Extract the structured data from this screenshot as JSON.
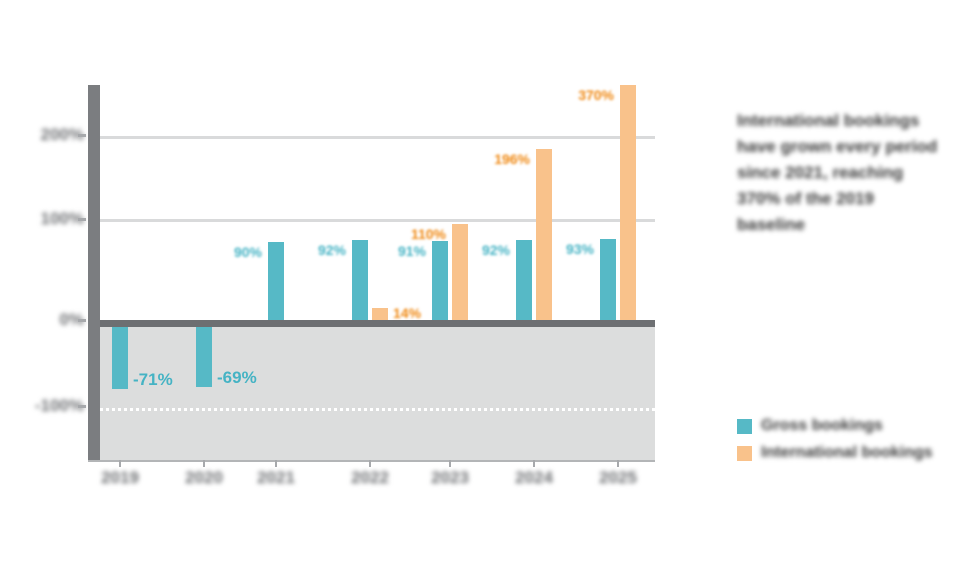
{
  "chart_data": {
    "type": "bar",
    "title": "",
    "xlabel": "",
    "ylabel": "",
    "categories": [
      "2019",
      "2020",
      "2021",
      "2022",
      "2023",
      "2024",
      "2025"
    ],
    "series": [
      {
        "name": "Gross bookings",
        "color": "#56b9c6",
        "values": [
          -71,
          -69,
          90,
          92,
          91,
          92,
          93
        ],
        "labels": [
          "-71%",
          "-69%",
          "90%",
          "92%",
          "91%",
          "92%",
          "93%"
        ]
      },
      {
        "name": "International bookings",
        "color": "#f9c28b",
        "label_color": "#ef8812",
        "values": [
          null,
          null,
          null,
          14,
          110,
          196,
          370
        ],
        "labels": [
          null,
          null,
          null,
          "14%",
          "110%",
          "196%",
          "370%"
        ]
      }
    ],
    "y_tick_labels": [
      "200%",
      "100%",
      "0%",
      "-100%"
    ],
    "ylim": [
      -130,
      280
    ],
    "grid": "horizontal",
    "legend_position": "bottom-right"
  },
  "annotation": {
    "text": "International bookings have grown every period since 2021, reaching 370% of the 2019 baseline"
  },
  "legend": {
    "items": [
      {
        "label": "Gross bookings",
        "swatch_color": "#56b9c6"
      },
      {
        "label": "International bookings",
        "swatch_color": "#f9c28b"
      }
    ]
  }
}
